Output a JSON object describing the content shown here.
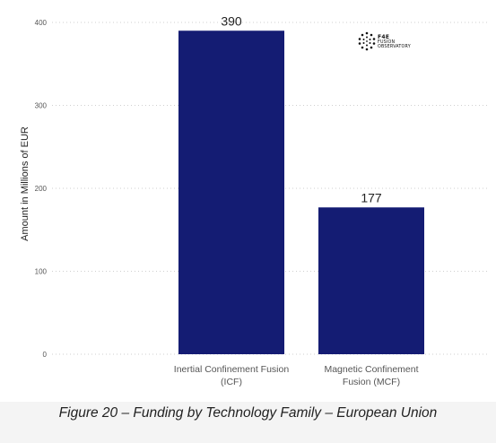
{
  "chart_data": {
    "type": "bar",
    "categories": [
      [
        "Inertial Confinement Fusion",
        "(ICF)"
      ],
      [
        "Magnetic Confinement",
        "Fusion (MCF)"
      ]
    ],
    "values": [
      390,
      177
    ],
    "data_labels": [
      "390",
      "177"
    ],
    "ylabel": "Amount in Millions of EUR",
    "ylim": [
      0,
      400
    ],
    "yticks": [
      0,
      100,
      200,
      300,
      400
    ],
    "grid": "horizontal dotted",
    "bar_color": "#141c73"
  },
  "logo": {
    "line1": "F4E",
    "line2": "FUSION",
    "line3": "OBSERVATORY"
  },
  "caption": "Figure 20 – Funding by Technology Family – European Union"
}
